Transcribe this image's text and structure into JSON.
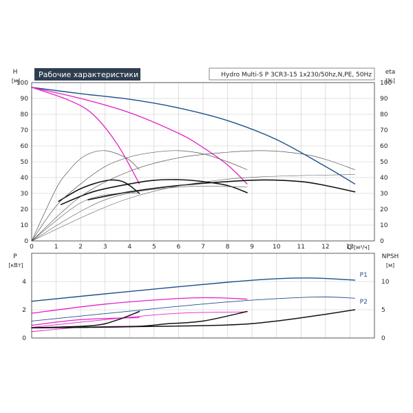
{
  "header": {
    "title": "Рабочие характеристики",
    "model": "Hydro Multi-S P 3CR3-15 1x230/50hz,N,PE, 50Hz"
  },
  "colors": {
    "header_bg": "#2e3e50",
    "blue": "#1d4e8a",
    "magenta": "#e61ec8",
    "black": "#111111",
    "thin": "#555555"
  },
  "chart_data": [
    {
      "type": "line",
      "name": "upper",
      "left_axis": {
        "label": "H",
        "unit": "[м]",
        "ticks": [
          0,
          10,
          20,
          30,
          40,
          50,
          60,
          70,
          80,
          90,
          100
        ],
        "range": [
          0,
          100
        ]
      },
      "right_axis": {
        "label": "eta",
        "unit": "[%]",
        "ticks": [
          0,
          10,
          20,
          30,
          40,
          50,
          60,
          70,
          80,
          90,
          100
        ],
        "range": [
          0,
          100
        ]
      },
      "x_axis": {
        "label": "Q",
        "unit": "[м³/ч]",
        "ticks": [
          0,
          1,
          2,
          3,
          4,
          5,
          6,
          7,
          8,
          9,
          10,
          11,
          12,
          13
        ],
        "range": [
          0,
          14
        ]
      },
      "grid": true,
      "series": [
        {
          "kind": "head",
          "color": "blue",
          "width": 1.4,
          "points": [
            [
              0,
              97
            ],
            [
              2,
              93
            ],
            [
              4,
              89.5
            ],
            [
              6,
              84
            ],
            [
              8,
              76
            ],
            [
              10,
              64
            ],
            [
              12,
              47
            ],
            [
              13.2,
              36
            ]
          ]
        },
        {
          "kind": "head",
          "color": "magenta",
          "width": 1.3,
          "points": [
            [
              0,
              97
            ],
            [
              2,
              90
            ],
            [
              4,
              81
            ],
            [
              6,
              68
            ],
            [
              7,
              59
            ],
            [
              8,
              48
            ],
            [
              8.8,
              36
            ]
          ]
        },
        {
          "kind": "head",
          "color": "magenta",
          "width": 1.3,
          "points": [
            [
              0,
              97
            ],
            [
              1.5,
              89
            ],
            [
              2.5,
              80
            ],
            [
              3.5,
              61
            ],
            [
              4.4,
              36
            ]
          ]
        },
        {
          "kind": "efficiency",
          "color": "black",
          "width": 1.6,
          "points": [
            [
              2.3,
              26
            ],
            [
              4,
              31
            ],
            [
              6,
              35
            ],
            [
              8,
              37.5
            ],
            [
              9.5,
              38.5
            ],
            [
              11,
              37.5
            ],
            [
              12,
              35
            ],
            [
              13.2,
              31
            ]
          ]
        },
        {
          "kind": "efficiency",
          "color": "black",
          "width": 1.6,
          "points": [
            [
              1.2,
              23
            ],
            [
              2.5,
              31
            ],
            [
              4,
              36
            ],
            [
              5,
              38.3
            ],
            [
              6,
              38.7
            ],
            [
              7,
              37.5
            ],
            [
              8,
              35
            ],
            [
              8.8,
              30.5
            ]
          ]
        },
        {
          "kind": "efficiency",
          "color": "black",
          "width": 1.6,
          "points": [
            [
              1.1,
              25
            ],
            [
              2,
              33
            ],
            [
              3,
              38
            ],
            [
              3.6,
              38
            ],
            [
              4,
              35
            ],
            [
              4.4,
              30
            ]
          ]
        },
        {
          "kind": "efficiency",
          "color": "thin",
          "width": 0.7,
          "points": [
            [
              0,
              0
            ],
            [
              2,
              28
            ],
            [
              4,
              44
            ],
            [
              6,
              52.5
            ],
            [
              8,
              56
            ],
            [
              9.5,
              57
            ],
            [
              11,
              55
            ],
            [
              12,
              51.5
            ],
            [
              13.2,
              45
            ]
          ]
        },
        {
          "kind": "efficiency",
          "color": "thin",
          "width": 0.7,
          "points": [
            [
              0,
              0
            ],
            [
              1,
              22
            ],
            [
              2,
              36
            ],
            [
              3,
              47
            ],
            [
              4,
              53
            ],
            [
              5,
              56
            ],
            [
              6,
              57
            ],
            [
              7,
              55
            ],
            [
              8,
              50
            ],
            [
              8.8,
              45
            ]
          ]
        },
        {
          "kind": "efficiency",
          "color": "thin",
          "width": 0.7,
          "points": [
            [
              0,
              0
            ],
            [
              1,
              33
            ],
            [
              1.5,
              44
            ],
            [
              2,
              52
            ],
            [
              2.5,
              56
            ],
            [
              3,
              57
            ],
            [
              3.5,
              55
            ],
            [
              4,
              51
            ],
            [
              4.4,
              45
            ]
          ]
        },
        {
          "kind": "system",
          "color": "thin",
          "width": 0.6,
          "points": [
            [
              0,
              0
            ],
            [
              4,
              27
            ],
            [
              8,
              39
            ],
            [
              13.2,
              42
            ]
          ]
        },
        {
          "kind": "system",
          "color": "thin",
          "width": 0.6,
          "points": [
            [
              0,
              0
            ],
            [
              3,
              26
            ],
            [
              6,
              34
            ],
            [
              8.8,
              34
            ]
          ]
        },
        {
          "kind": "system",
          "color": "thin",
          "width": 0.6,
          "points": [
            [
              0,
              0
            ],
            [
              2,
              24
            ],
            [
              3.5,
              30
            ],
            [
              4.4,
              30
            ]
          ]
        }
      ]
    },
    {
      "type": "line",
      "name": "lower",
      "left_axis": {
        "label": "P",
        "unit": "[кВт]",
        "ticks": [
          0,
          2,
          4
        ],
        "range": [
          0,
          6
        ]
      },
      "right_axis": {
        "label": "NPSH",
        "unit": "[м]",
        "ticks": [
          0,
          5,
          10
        ],
        "range": [
          0,
          15
        ]
      },
      "x_axis": {
        "range": [
          0,
          14
        ]
      },
      "grid": true,
      "labels": [
        {
          "text": "P1",
          "at": [
            13.4,
            4.35
          ],
          "color": "blue"
        },
        {
          "text": "P2",
          "at": [
            13.4,
            2.45
          ],
          "color": "blue"
        }
      ],
      "series": [
        {
          "kind": "P1",
          "color": "blue",
          "width": 1.4,
          "points": [
            [
              0,
              2.6
            ],
            [
              4,
              3.3
            ],
            [
              8,
              3.95
            ],
            [
              10,
              4.2
            ],
            [
              11.5,
              4.25
            ],
            [
              13.2,
              4.1
            ]
          ]
        },
        {
          "kind": "P2",
          "color": "blue",
          "width": 0.9,
          "points": [
            [
              0,
              1.2
            ],
            [
              4,
              1.9
            ],
            [
              8,
              2.55
            ],
            [
              11.5,
              2.9
            ],
            [
              13.2,
              2.82
            ]
          ]
        },
        {
          "kind": "P1",
          "color": "magenta",
          "width": 1.3,
          "points": [
            [
              0,
              1.75
            ],
            [
              3,
              2.4
            ],
            [
              6,
              2.8
            ],
            [
              7.5,
              2.85
            ],
            [
              8.8,
              2.75
            ]
          ]
        },
        {
          "kind": "P2",
          "color": "magenta",
          "width": 0.9,
          "points": [
            [
              0,
              0.75
            ],
            [
              3,
              1.3
            ],
            [
              6,
              1.75
            ],
            [
              8.8,
              1.85
            ]
          ]
        },
        {
          "kind": "P1",
          "color": "magenta",
          "width": 1.3,
          "points": [
            [
              0,
              0.9
            ],
            [
              2,
              1.3
            ],
            [
              4.4,
              1.45
            ]
          ]
        },
        {
          "kind": "P2",
          "color": "magenta",
          "width": 0.9,
          "points": [
            [
              0,
              0.45
            ],
            [
              2,
              0.75
            ],
            [
              4.4,
              0.85
            ]
          ]
        },
        {
          "kind": "NPSH",
          "color": "black",
          "width": 1.5,
          "axis": "right",
          "points": [
            [
              0,
              1.8
            ],
            [
              4,
              2.0
            ],
            [
              8,
              2.3
            ],
            [
              10,
              3.0
            ],
            [
              12,
              4.2
            ],
            [
              13.2,
              5.0
            ]
          ]
        },
        {
          "kind": "NPSH",
          "color": "black",
          "width": 1.5,
          "axis": "right",
          "points": [
            [
              0,
              1.8
            ],
            [
              4,
              2.0
            ],
            [
              5.5,
              2.5
            ],
            [
              7,
              3.0
            ],
            [
              8.8,
              4.7
            ]
          ]
        },
        {
          "kind": "NPSH",
          "color": "black",
          "width": 1.5,
          "axis": "right",
          "points": [
            [
              0,
              1.8
            ],
            [
              2.5,
              2.2
            ],
            [
              3.5,
              3.2
            ],
            [
              4.4,
              4.7
            ]
          ]
        }
      ]
    }
  ]
}
